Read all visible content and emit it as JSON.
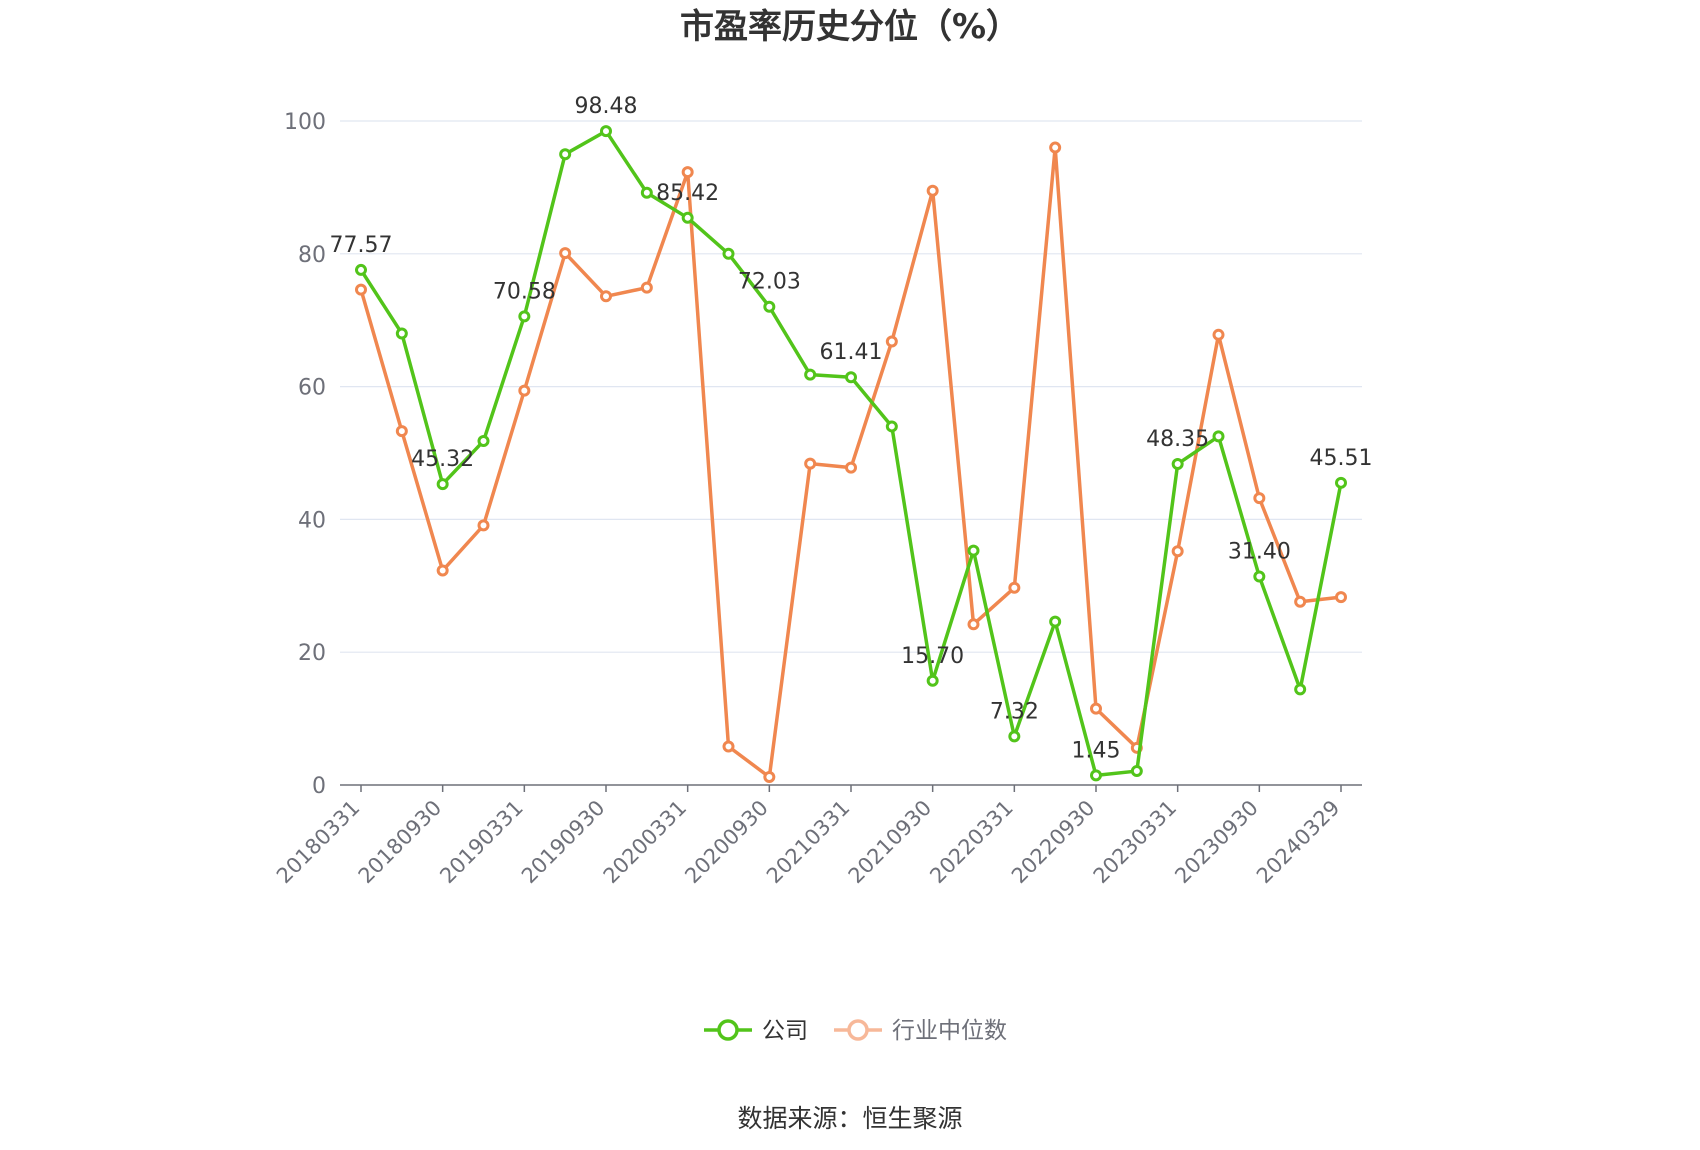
{
  "chart_data": {
    "type": "line",
    "title": "市盈率历史分位（%）",
    "source": "数据来源：恒生聚源",
    "ylim": [
      0,
      100
    ],
    "yticks": [
      0,
      20,
      40,
      60,
      80,
      100
    ],
    "grid": true,
    "legend_position": "bottom",
    "x": [
      "20180331",
      "20180630",
      "20180930",
      "20181231",
      "20190331",
      "20190630",
      "20190930",
      "20191231",
      "20200331",
      "20200630",
      "20200930",
      "20201231",
      "20210331",
      "20210630",
      "20210930",
      "20211231",
      "20220331",
      "20220630",
      "20220930",
      "20221231",
      "20230331",
      "20230630",
      "20230930",
      "20231231",
      "20240329"
    ],
    "xtick_labels": [
      "20180331",
      "20180930",
      "20190331",
      "20190930",
      "20200331",
      "20200930",
      "20210331",
      "20210930",
      "20220331",
      "20220930",
      "20230331",
      "20230930",
      "20240329"
    ],
    "series": [
      {
        "name": "公司",
        "color": "#52c41a",
        "values": [
          77.57,
          68.0,
          45.32,
          51.8,
          70.58,
          95.0,
          98.48,
          89.2,
          85.42,
          80.0,
          72.03,
          61.8,
          61.41,
          54.0,
          15.7,
          35.3,
          7.32,
          24.6,
          1.45,
          2.1,
          48.35,
          52.5,
          31.4,
          14.4,
          45.51
        ],
        "data_labels": {
          "0": "77.57",
          "2": "45.32",
          "4": "70.58",
          "6": "98.48",
          "8": "85.42",
          "10": "72.03",
          "12": "61.41",
          "14": "15.70",
          "16": "7.32",
          "18": "1.45",
          "20": "48.35",
          "22": "31.40",
          "24": "45.51"
        }
      },
      {
        "name": "行业中位数",
        "color": "#f0874f",
        "values": [
          74.6,
          53.3,
          32.3,
          39.1,
          59.4,
          80.1,
          73.6,
          74.9,
          92.3,
          5.8,
          1.2,
          48.4,
          47.8,
          66.8,
          89.5,
          24.2,
          29.7,
          96.0,
          11.5,
          5.6,
          35.2,
          67.8,
          43.2,
          27.6,
          28.3
        ],
        "data_labels": {}
      }
    ]
  }
}
